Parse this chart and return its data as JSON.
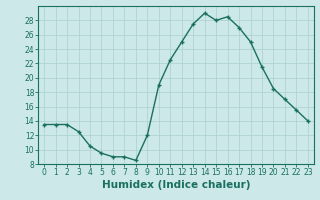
{
  "x": [
    0,
    1,
    2,
    3,
    4,
    5,
    6,
    7,
    8,
    9,
    10,
    11,
    12,
    13,
    14,
    15,
    16,
    17,
    18,
    19,
    20,
    21,
    22,
    23
  ],
  "y": [
    13.5,
    13.5,
    13.5,
    12.5,
    10.5,
    9.5,
    9.0,
    9.0,
    8.5,
    12.0,
    19.0,
    22.5,
    25.0,
    27.5,
    29.0,
    28.0,
    28.5,
    27.0,
    25.0,
    21.5,
    18.5,
    17.0,
    15.5,
    14.0
  ],
  "line_color": "#1a7060",
  "marker": "+",
  "marker_size": 3.5,
  "bg_color": "#cce8e8",
  "grid_color": "#aacfcf",
  "xlabel": "Humidex (Indice chaleur)",
  "xlim": [
    -0.5,
    23.5
  ],
  "ylim": [
    8,
    30
  ],
  "yticks": [
    8,
    10,
    12,
    14,
    16,
    18,
    20,
    22,
    24,
    26,
    28
  ],
  "xticks": [
    0,
    1,
    2,
    3,
    4,
    5,
    6,
    7,
    8,
    9,
    10,
    11,
    12,
    13,
    14,
    15,
    16,
    17,
    18,
    19,
    20,
    21,
    22,
    23
  ],
  "tick_label_fontsize": 5.5,
  "xlabel_fontsize": 7.5,
  "line_width": 1.0,
  "markeredgewidth": 1.0
}
